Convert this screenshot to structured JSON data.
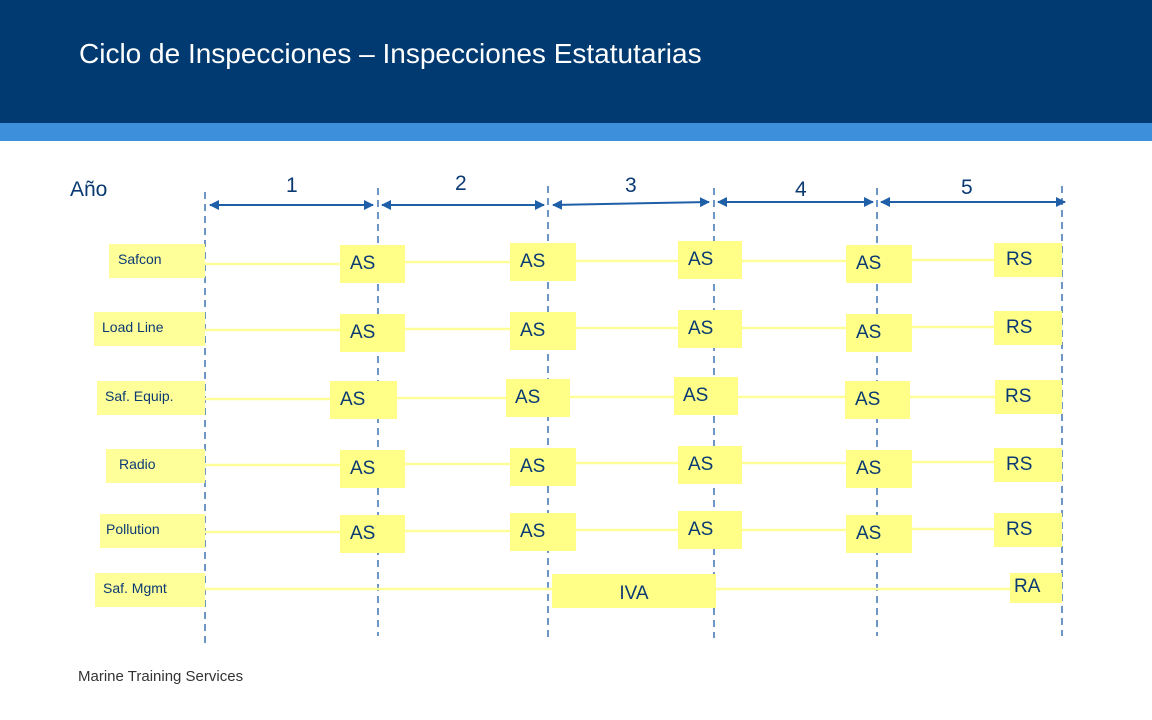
{
  "header": {
    "title": "Ciclo de Inspecciones – Inspecciones Estatutarias"
  },
  "footer": {
    "text": "Marine Training Services"
  },
  "timeline": {
    "axis_label": "Año",
    "years": [
      "1",
      "2",
      "3",
      "4",
      "5"
    ]
  },
  "rows": [
    {
      "label": "Safcon",
      "inspections": [
        "AS",
        "AS",
        "AS",
        "AS",
        "RS"
      ]
    },
    {
      "label": "Load Line",
      "inspections": [
        "AS",
        "AS",
        "AS",
        "AS",
        "RS"
      ]
    },
    {
      "label": "Saf. Equip.",
      "inspections": [
        "AS",
        "AS",
        "AS",
        "AS",
        "RS"
      ]
    },
    {
      "label": "Radio",
      "inspections": [
        "AS",
        "AS",
        "AS",
        "AS",
        "RS"
      ]
    },
    {
      "label": "Pollution",
      "inspections": [
        "AS",
        "AS",
        "AS",
        "AS",
        "RS"
      ]
    },
    {
      "label": "Saf. Mgmt",
      "inspections": [
        "IVA",
        "RA"
      ]
    }
  ],
  "colors": {
    "header_bg": "#003a70",
    "header_stripe": "#3d8fdc",
    "box_fill": "#ffff88",
    "text": "#0b3a73",
    "arrow": "#1f5fa8",
    "connector": "#ffff99"
  }
}
